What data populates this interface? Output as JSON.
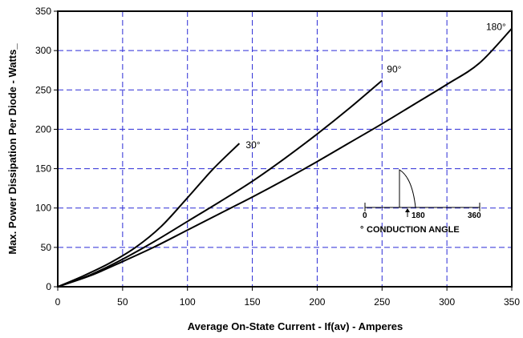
{
  "chart_data": {
    "type": "line",
    "title": "",
    "xlabel": "Average On-State Current - If(av) - Amperes",
    "ylabel": "Max. Power Dissipation Per Diode - Watts_",
    "xlim": [
      0,
      350
    ],
    "ylim": [
      0,
      350
    ],
    "x_ticks": [
      "0",
      "50",
      "100",
      "150",
      "200",
      "250",
      "300",
      "350"
    ],
    "y_ticks": [
      "0",
      "50",
      "100",
      "150",
      "200",
      "250",
      "300",
      "350"
    ],
    "grid": true,
    "grid_style": "dashed",
    "colors": {
      "grid": "#2b2bd6",
      "curves": "#000000",
      "frame": "#000000"
    },
    "series": [
      {
        "label": "30°",
        "x": [
          0,
          20,
          40,
          60,
          80,
          100,
          120,
          140
        ],
        "y": [
          0,
          14,
          30,
          50,
          77,
          113,
          150,
          182
        ]
      },
      {
        "label": "90°",
        "x": [
          0,
          25,
          50,
          75,
          100,
          125,
          150,
          175,
          200,
          225,
          250
        ],
        "y": [
          0,
          15,
          35,
          58,
          83,
          108,
          134,
          163,
          194,
          227,
          262
        ]
      },
      {
        "label": "180°",
        "x": [
          0,
          25,
          50,
          75,
          100,
          125,
          150,
          175,
          200,
          225,
          250,
          275,
          300,
          325,
          350
        ],
        "y": [
          0,
          14,
          32,
          51,
          72,
          93,
          114,
          136,
          159,
          183,
          207,
          232,
          257,
          284,
          328
        ]
      }
    ],
    "inset": {
      "title": "CONDUCTION ANGLE",
      "degree_symbol": "°",
      "scale_labels": [
        "0",
        "180",
        "360"
      ]
    }
  }
}
